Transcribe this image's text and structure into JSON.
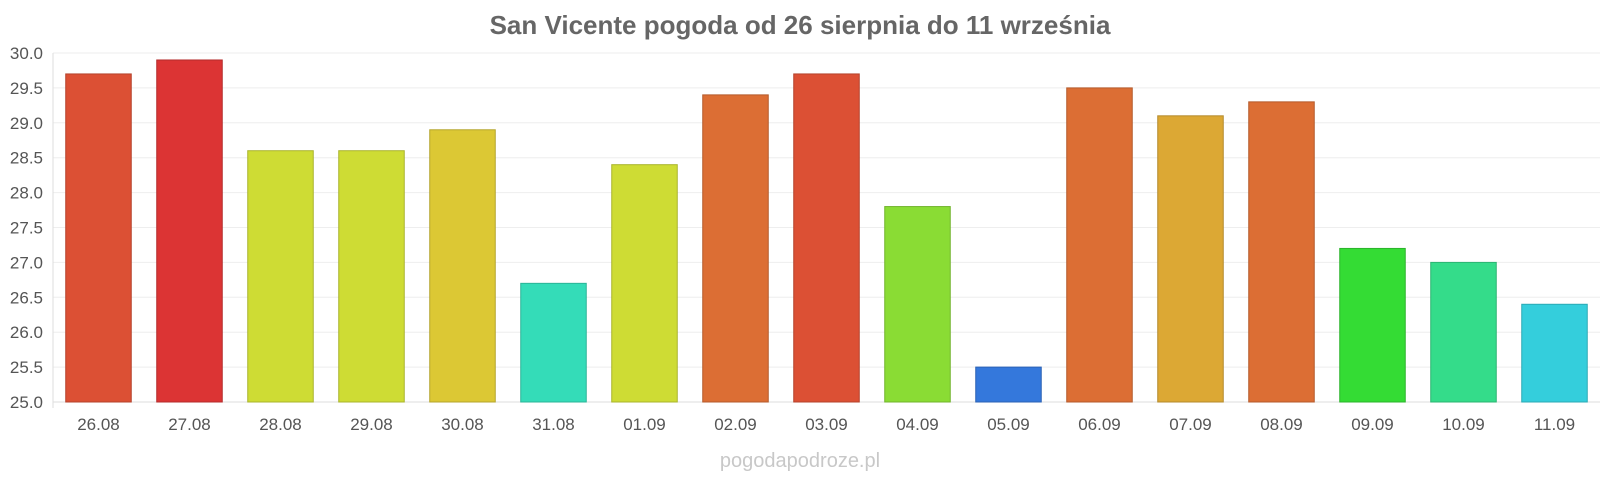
{
  "chart_data": {
    "type": "bar",
    "title": "San Vicente pogoda od 26 sierpnia do 11 września",
    "xlabel": "",
    "ylabel": "",
    "ylim": [
      25.0,
      30.0
    ],
    "yticks": [
      "25.0",
      "25.5",
      "26.0",
      "26.5",
      "27.0",
      "27.5",
      "28.0",
      "28.5",
      "29.0",
      "29.5",
      "30.0"
    ],
    "grid": true,
    "categories": [
      "26.08",
      "27.08",
      "28.08",
      "29.08",
      "30.08",
      "31.08",
      "01.09",
      "02.09",
      "03.09",
      "04.09",
      "05.09",
      "06.09",
      "07.09",
      "08.09",
      "09.09",
      "10.09",
      "11.09"
    ],
    "values": [
      29.7,
      29.9,
      28.6,
      28.6,
      28.9,
      26.7,
      28.4,
      29.4,
      29.7,
      27.8,
      25.5,
      29.5,
      29.1,
      29.3,
      27.2,
      27.0,
      26.4
    ],
    "colors": [
      "#dc5034",
      "#dc3434",
      "#cedc34",
      "#cedc34",
      "#dcc834",
      "#34dcb8",
      "#cedc34",
      "#dc6e34",
      "#dc5034",
      "#8adc34",
      "#3478dc",
      "#dc6e34",
      "#dca834",
      "#dc6e34",
      "#34dc34",
      "#34dc8a",
      "#34cedc"
    ]
  },
  "footer": {
    "watermark": "pogodapodroze.pl"
  }
}
